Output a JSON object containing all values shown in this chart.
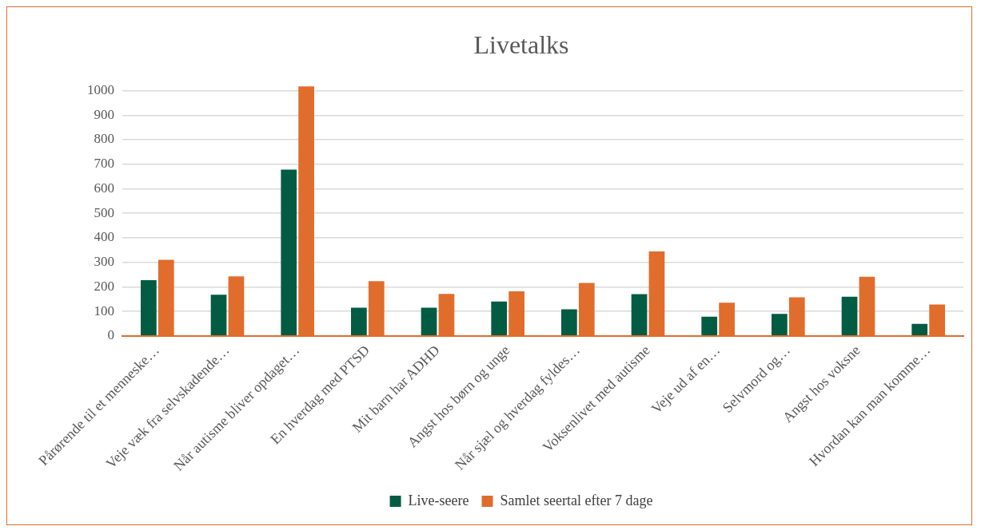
{
  "chart_data": {
    "type": "bar",
    "title": "Livetalks",
    "categories": [
      "Pårørende til et menneske…",
      "Veje væk fra selvskadende…",
      "Når autisme bliver opdaget…",
      "En hverdag med PTSD",
      "Mit barn har ADHD",
      "Angst hos børn og unge",
      "Når sjæl og hverdag fyldes…",
      "Voksenlivet med autisme",
      "Veje ud af en…",
      "Selvmord og…",
      "Angst hos voksne",
      "Hvordan kan man komme…"
    ],
    "series": [
      {
        "name": "Live-seere",
        "color": "#025c43",
        "values": [
          227,
          168,
          678,
          115,
          115,
          140,
          108,
          170,
          78,
          90,
          160,
          49
        ]
      },
      {
        "name": "Samlet seertal efter 7 dage",
        "color": "#e06d2c",
        "values": [
          310,
          243,
          1017,
          223,
          171,
          182,
          216,
          344,
          135,
          157,
          241,
          128
        ]
      }
    ],
    "ylim": [
      0,
      1020
    ],
    "yticks": [
      0,
      100,
      200,
      300,
      400,
      500,
      600,
      700,
      800,
      900,
      1000
    ],
    "grid": "y",
    "legend": "bottom"
  }
}
